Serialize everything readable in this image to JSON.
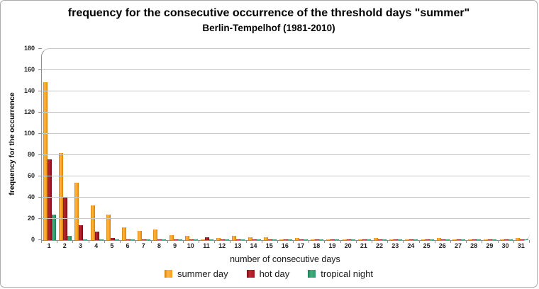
{
  "chart_data": {
    "type": "bar",
    "title": "frequency for the consecutive occurrence of the threshold days \"summer\"",
    "subtitle": "Berlin-Tempelhof (1981-2010)",
    "xlabel": "number of consecutive days",
    "ylabel": "frequency for the occurrence",
    "ylim": [
      0,
      180
    ],
    "ytick_step": 20,
    "grid": true,
    "legend_position": "bottom",
    "categories": [
      1,
      2,
      3,
      4,
      5,
      6,
      7,
      8,
      9,
      10,
      11,
      12,
      13,
      14,
      15,
      16,
      17,
      18,
      19,
      20,
      21,
      22,
      23,
      24,
      25,
      26,
      27,
      28,
      29,
      30,
      31
    ],
    "series": [
      {
        "name": "summer day",
        "color": "#F9A01B",
        "color_light": "#FFB647",
        "color_dark": "#D27D0A",
        "values": [
          149,
          82,
          54,
          33,
          24,
          12,
          9,
          10,
          5,
          4,
          1,
          2,
          4,
          3,
          3,
          1,
          2,
          1,
          1,
          1,
          1,
          2,
          1,
          1,
          1,
          2,
          1,
          1,
          1,
          1,
          2
        ]
      },
      {
        "name": "hot day",
        "color": "#A01622",
        "color_light": "#BC2A33",
        "color_dark": "#7C0E16",
        "values": [
          76,
          41,
          14,
          8,
          2,
          1,
          1,
          1,
          1,
          1,
          3,
          1,
          1,
          1,
          1,
          1,
          1,
          1,
          1,
          1,
          1,
          1,
          1,
          1,
          1,
          1,
          1,
          1,
          1,
          1,
          1
        ]
      },
      {
        "name": "tropical night",
        "color": "#2E9B6E",
        "color_light": "#43AD7D",
        "color_dark": "#1E7A50",
        "values": [
          24,
          4,
          1,
          1,
          1,
          1,
          1,
          1,
          1,
          1,
          1,
          1,
          1,
          1,
          1,
          1,
          1,
          1,
          1,
          1,
          1,
          1,
          1,
          1,
          1,
          1,
          1,
          1,
          1,
          1,
          1
        ]
      }
    ],
    "colors": {
      "gridline": "#c6c6c6",
      "axis": "#8f8f8f",
      "text": "#262626"
    }
  }
}
